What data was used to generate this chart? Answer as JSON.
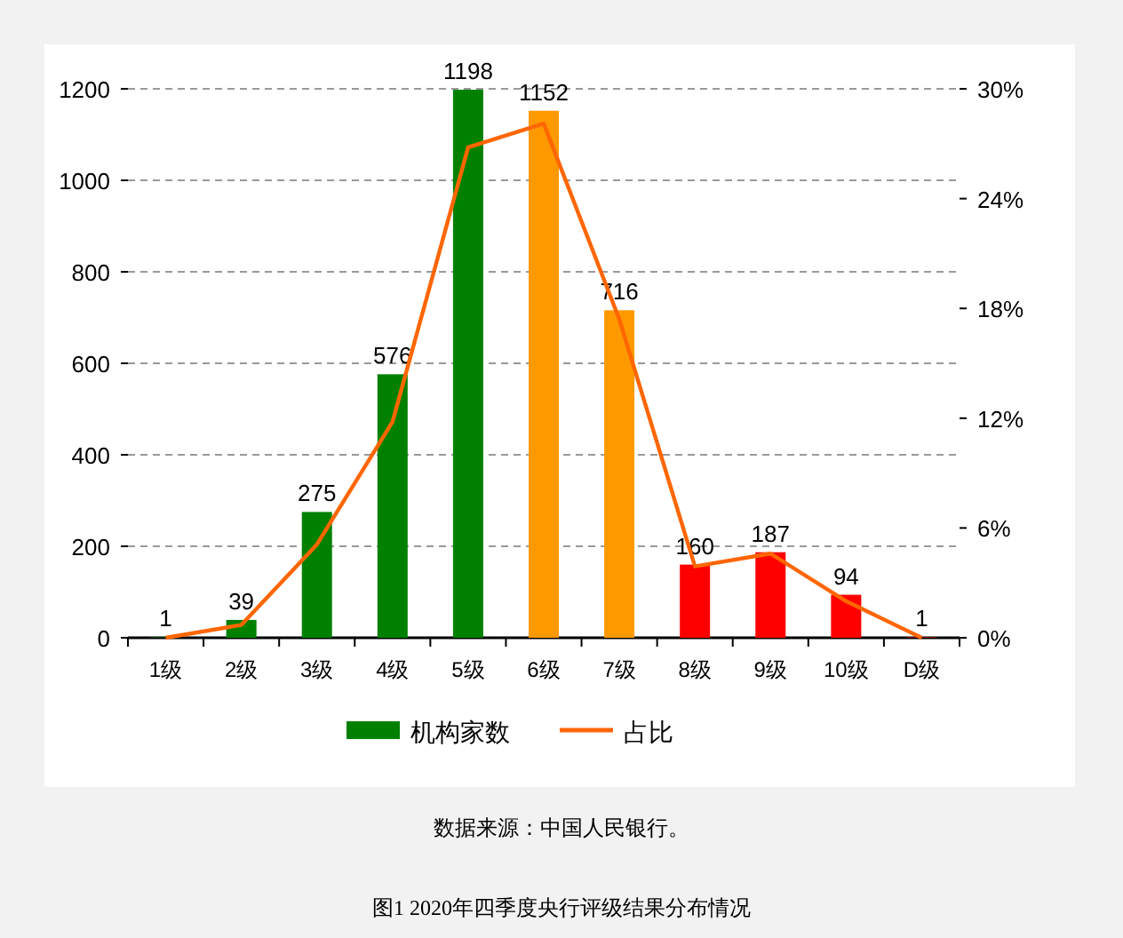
{
  "chart_data": {
    "type": "bar",
    "title": "图1 2020年四季度央行评级结果分布情况",
    "annotations": [
      "数据来源：中国人民银行。"
    ],
    "categories": [
      "1级",
      "2级",
      "3级",
      "4级",
      "5级",
      "6级",
      "7级",
      "8级",
      "9级",
      "10级",
      "D级"
    ],
    "series": [
      {
        "name": "机构家数",
        "color": "#008000",
        "colors": [
          "#008000",
          "#008000",
          "#008000",
          "#008000",
          "#008000",
          "#ff9900",
          "#ff9900",
          "#ff0000",
          "#ff0000",
          "#ff0000",
          "#ff0000"
        ],
        "values": [
          1,
          39,
          275,
          576,
          1198,
          1152,
          716,
          160,
          187,
          94,
          1
        ],
        "value_labels": [
          "1",
          "39",
          "275",
          "576",
          "1198",
          "1152",
          "716",
          "160",
          "187",
          "94",
          "1"
        ]
      },
      {
        "name": "占比",
        "type": "line",
        "axis": "y2",
        "color": "#ff6600",
        "values": [
          0,
          0.7,
          5.1,
          11.8,
          26.8,
          28.1,
          17.4,
          3.9,
          4.6,
          2.0,
          0
        ]
      }
    ],
    "ylim": [
      0,
      1200
    ],
    "yticks": [
      0,
      200,
      400,
      600,
      800,
      1000,
      1200
    ],
    "y2lim": [
      0,
      30
    ],
    "y2ticks": [
      {
        "value": 0,
        "label": "0%"
      },
      {
        "value": 6,
        "label": "6%"
      },
      {
        "value": 12,
        "label": "12%"
      },
      {
        "value": 18,
        "label": "18%"
      },
      {
        "value": 24,
        "label": "24%"
      },
      {
        "value": 30,
        "label": "30%"
      }
    ],
    "grid": "y",
    "legend": "bottom"
  }
}
